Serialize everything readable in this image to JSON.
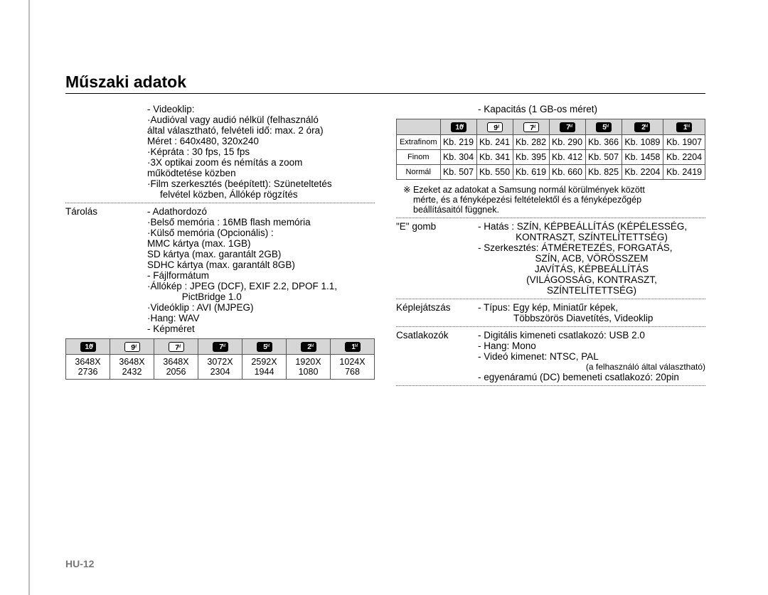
{
  "title": "Műszaki adatok",
  "footer": "HU-12",
  "mp_icons": [
    "10",
    "9",
    "7",
    "7",
    "5",
    "2",
    "1"
  ],
  "mp_filled": [
    true,
    false,
    false,
    true,
    true,
    true,
    true
  ],
  "left": {
    "videoklip_label": "- Videoklip:",
    "videoklip_lines": [
      "·Audióval vagy audió nélkül (felhasználó",
      "által választható, felvételi idő: max. 2 óra)",
      "Méret : 640x480, 320x240",
      "·Képráta : 30 fps, 15 fps",
      "·3X optikai zoom és némítás a zoom",
      "működtetése közben",
      "·Film szerkesztés (beépített): Szüneteltetés",
      "felvétel közben, Állókép rögzítés"
    ],
    "tarolas_label": "Tárolás",
    "adathordozo_label": "- Adathordozó",
    "adathordozo_lines": [
      "·Belső memória : 16MB flash memória",
      "·Külső memória (Opcionális) :",
      "MMC kártya (max. 1GB)",
      "SD kártya (max. garantált 2GB)",
      "SDHC kártya (max. garantált 8GB)"
    ],
    "fajlformatum_label": "- Fájlformátum",
    "fajlformatum_lines": [
      "·Állókép : JPEG (DCF), EXIF 2.2, DPOF 1.1,",
      "             PictBridge 1.0",
      "·Videóklip : AVI (MJPEG)",
      "·Hang: WAV"
    ],
    "kepmeret_label": "- Képméret",
    "size_table": {
      "rows": [
        [
          "3648X",
          "3648X",
          "3648X",
          "3072X",
          "2592X",
          "1920X",
          "1024X"
        ],
        [
          "2736",
          "2432",
          "2056",
          "2304",
          "1944",
          "1080",
          "768"
        ]
      ]
    }
  },
  "right": {
    "kapacitas_label": "- Kapacitás (1 GB-os méret)",
    "cap_table": {
      "row_labels": [
        "Extrafinom",
        "Finom",
        "Normál"
      ],
      "rows": [
        [
          "Kb. 219",
          "Kb. 241",
          "Kb. 282",
          "Kb. 290",
          "Kb. 366",
          "Kb. 1089",
          "Kb. 1907"
        ],
        [
          "Kb. 304",
          "Kb. 341",
          "Kb. 395",
          "Kb. 412",
          "Kb. 507",
          "Kb. 1458",
          "Kb. 2204"
        ],
        [
          "Kb. 507",
          "Kb. 550",
          "Kb. 619",
          "Kb. 660",
          "Kb. 825",
          "Kb. 2204",
          "Kb. 2419"
        ]
      ]
    },
    "note_lines": [
      "※ Ezeket az adatokat a Samsung normál körülmények között",
      "mérte, és a fényképezési feltételektől és a fényképezőgép",
      "beállításaitól függnek."
    ],
    "e_gomb_label": "\"E\" gomb",
    "e_gomb_lines": [
      "- Hatás :  SZÍN, KÉPBEÁLLÍTÁS (KÉPÉLESSÉG,",
      "KONTRASZT, SZÍNTELÍTETTSÉG)",
      "- Szerkesztés: ÁTMÉRETEZÉS, FORGATÁS,",
      "SZÍN, ACB, VÖRÖSSZEM",
      "JAVÍTÁS, KÉPBEÁLLÍTÁS",
      "(VILÁGOSSÁG, KONTRASZT,",
      "SZÍNTELÍTETTSÉG)"
    ],
    "keplejatszas_label": "Képlejátszás",
    "keplejatszas_lines": [
      "- Típus: Egy kép, Miniatűr képek,",
      "Többszörös Diavetítés, Videoklip"
    ],
    "csatlakozok_label": "Csatlakozók",
    "csatlakozok_lines": [
      "- Digitális kimeneti csatlakozó: USB 2.0",
      "- Hang: Mono",
      "- Videó kimenet: NTSC, PAL"
    ],
    "csatlakozok_note": "(a felhasználó által választható)",
    "csatlakozok_last": "- egyenáramú (DC) bemeneti csatlakozó: 20pin"
  }
}
